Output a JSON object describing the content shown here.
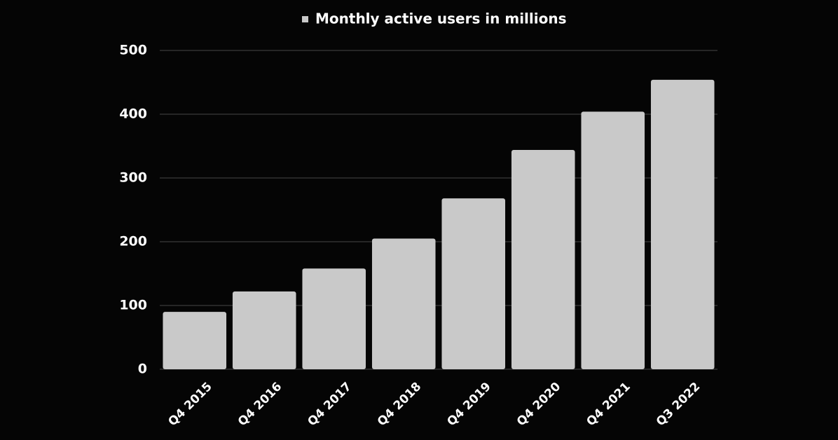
{
  "chart_data": {
    "type": "bar",
    "categories": [
      "Q4 2015",
      "Q4 2016",
      "Q4 2017",
      "Q4 2018",
      "Q4 2019",
      "Q4 2020",
      "Q4 2021",
      "Q3 2022"
    ],
    "series": [
      {
        "name": "Monthly active users in millions",
        "color": "#c9c9c9",
        "values": [
          90,
          122,
          158,
          205,
          268,
          344,
          404,
          454
        ]
      }
    ],
    "ylim": [
      0,
      500
    ],
    "yticks": [
      0,
      100,
      200,
      300,
      400,
      500
    ],
    "grid": true,
    "legend": "top"
  }
}
